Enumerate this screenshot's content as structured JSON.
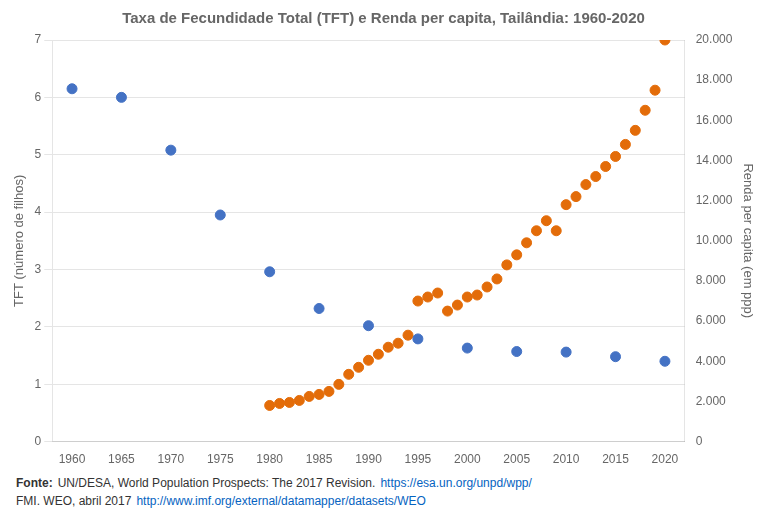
{
  "chart_data": {
    "type": "scatter",
    "title": "Taxa de Fecundidade Total (TFT) e Renda per capita, Tailândia: 1960-2020",
    "ylabel": "TFT (número de filhos)",
    "y2label": "Renda per capita (em ppp)",
    "xlim": [
      1958,
      2022
    ],
    "xticks": [
      1960,
      1965,
      1970,
      1975,
      1980,
      1985,
      1990,
      1995,
      2000,
      2005,
      2010,
      2015,
      2020
    ],
    "ylim": [
      0,
      7
    ],
    "yticks": [
      0,
      1,
      2,
      3,
      4,
      5,
      6,
      7
    ],
    "y2lim": [
      0,
      20000
    ],
    "y2ticks": [
      0,
      {
        "value": 2000,
        "label": "2.000"
      },
      {
        "value": 4000,
        "label": "4.000"
      },
      {
        "value": 6000,
        "label": "6.000"
      },
      {
        "value": 8000,
        "label": "8.000"
      },
      {
        "value": 10000,
        "label": "10.000"
      },
      {
        "value": 12000,
        "label": "12.000"
      },
      {
        "value": 14000,
        "label": "14.000"
      },
      {
        "value": 16000,
        "label": "16.000"
      },
      {
        "value": 18000,
        "label": "18.000"
      },
      {
        "value": 20000,
        "label": "20.000"
      }
    ],
    "grid": "y",
    "series": [
      {
        "color": "#4472C4",
        "x": [
          1960,
          1965,
          1970,
          1975,
          1980,
          1985,
          1990,
          1995,
          2000,
          2005,
          2010,
          2015,
          2020
        ],
        "values": [
          6.15,
          6.0,
          5.08,
          3.95,
          2.96,
          2.32,
          2.02,
          1.79,
          1.63,
          1.57,
          1.56,
          1.48,
          1.4
        ]
      },
      {
        "color": "#E36C09",
        "axis": "y2",
        "x": [
          1980,
          1981,
          1982,
          1983,
          1984,
          1985,
          1986,
          1987,
          1988,
          1989,
          1990,
          1991,
          1992,
          1993,
          1994,
          1995,
          1996,
          1997,
          1998,
          1999,
          2000,
          2001,
          2002,
          2003,
          2004,
          2005,
          2006,
          2007,
          2008,
          2009,
          2010,
          2011,
          2012,
          2013,
          2014,
          2015,
          2016,
          2017,
          2018,
          2019,
          2020
        ],
        "values": [
          1800,
          1900,
          1950,
          2050,
          2250,
          2350,
          2500,
          2850,
          3350,
          3700,
          4050,
          4350,
          4700,
          4900,
          5300,
          7000,
          7200,
          7400,
          6500,
          6800,
          7200,
          7300,
          7700,
          8100,
          8800,
          9300,
          9900,
          10500,
          11000,
          10500,
          11800,
          12200,
          12800,
          13200,
          13700,
          14200,
          14800,
          15500,
          16500,
          17500,
          20000
        ]
      }
    ],
    "annotations": [
      [
        {
          "text": "Fonte:"
        },
        {
          "text": "UN/DESA, World Population Prospects: The 2017 Revision."
        },
        {
          "text": "https://esa.un.org/unpd/wpp/",
          "color": "#0563C1"
        }
      ],
      [
        {
          "text": "FMI. WEO, abril 2017"
        },
        {
          "text": "http://www.imf.org/external/datamapper/datasets/WEO",
          "color": "#0563C1"
        }
      ]
    ]
  }
}
